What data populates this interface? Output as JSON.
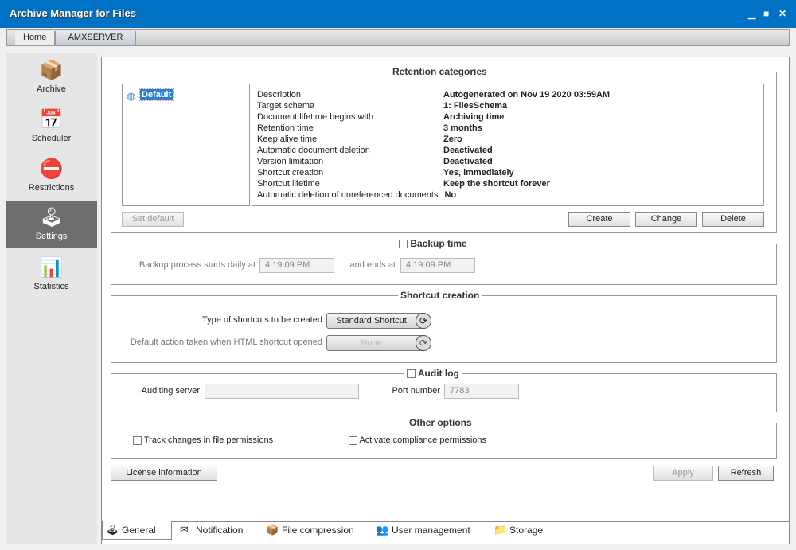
{
  "window": {
    "title": "Archive Manager for Files"
  },
  "breadcrumb": [
    "Home",
    "AMXSERVER"
  ],
  "sidebar": {
    "items": [
      {
        "label": "Archive",
        "icon": "archive-box-icon"
      },
      {
        "label": "Scheduler",
        "icon": "calendar-clock-icon"
      },
      {
        "label": "Restrictions",
        "icon": "no-entry-icon"
      },
      {
        "label": "Settings",
        "icon": "joystick-icon",
        "selected": true
      },
      {
        "label": "Statistics",
        "icon": "chart-icon"
      }
    ]
  },
  "retention": {
    "title": "Retention categories",
    "selected": "Default",
    "rows": [
      {
        "k": "Description",
        "v": "Autogenerated on Nov 19 2020 03:59AM"
      },
      {
        "k": "Target schema",
        "v": "1: FilesSchema"
      },
      {
        "k": "Document lifetime begins with",
        "v": "Archiving time"
      },
      {
        "k": "Retention time",
        "v": "3 months"
      },
      {
        "k": "Keep alive time",
        "v": "Zero"
      },
      {
        "k": "Automatic document deletion",
        "v": "Deactivated"
      },
      {
        "k": "Version limitation",
        "v": "Deactivated"
      },
      {
        "k": "Shortcut creation",
        "v": "Yes, immediately"
      },
      {
        "k": "Shortcut lifetime",
        "v": "Keep the shortcut forever"
      },
      {
        "k": "Automatic deletion of unreferenced documents",
        "v": "No"
      }
    ],
    "set_default": "Set default",
    "create": "Create",
    "change": "Change",
    "delete": "Delete"
  },
  "backup": {
    "title": "Backup time",
    "checked": false,
    "starts_label": "Backup process starts daily at",
    "start": "4:19:09 PM",
    "ends_label": "and ends at",
    "end": "4:19:09 PM"
  },
  "shortcut": {
    "title": "Shortcut creation",
    "type_label": "Type of shortcuts to be created",
    "type_value": "Standard Shortcut",
    "action_label": "Default action taken when HTML shortcut opened",
    "action_value": "None"
  },
  "audit": {
    "title": "Audit log",
    "checked": false,
    "server_label": "Auditing server",
    "server_value": "",
    "port_label": "Port number",
    "port_value": "7783"
  },
  "other": {
    "title": "Other options",
    "track": "Track changes in file permissions",
    "compliance": "Activate compliance permissions"
  },
  "buttons": {
    "license": "License information",
    "apply": "Apply",
    "refresh": "Refresh"
  },
  "tabs": [
    {
      "label": "General",
      "active": true
    },
    {
      "label": "Notification"
    },
    {
      "label": "File compression"
    },
    {
      "label": "User management"
    },
    {
      "label": "Storage"
    }
  ]
}
